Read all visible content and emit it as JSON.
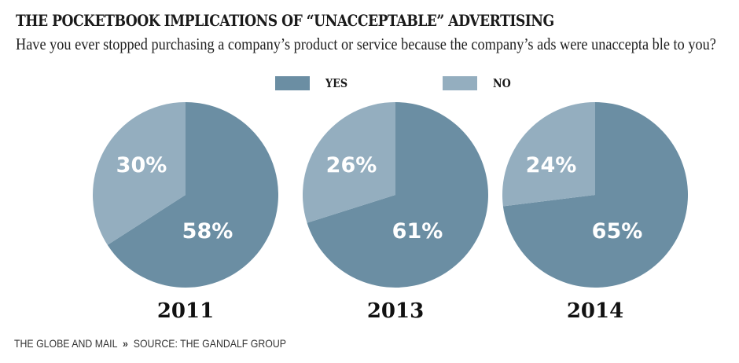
{
  "header": {
    "title": "THE POCKETBOOK IMPLICATIONS OF “UNACCEPTABLE” ADVERTISING",
    "subtitle": "Have you ever stopped purchasing a company’s product or service because the company’s ads were unaccepta ble to you?"
  },
  "legend": [
    {
      "label": "YES",
      "color": "#6b8ea3"
    },
    {
      "label": "NO",
      "color": "#94aebf"
    }
  ],
  "footer": {
    "publisher": "THE GLOBE AND MAIL",
    "separator": "»",
    "source": "SOURCE: THE GANDALF GROUP"
  },
  "chart_data": {
    "type": "pie",
    "title": "THE POCKETBOOK IMPLICATIONS OF “UNACCEPTABLE” ADVERTISING",
    "subtitle": "Have you ever stopped purchasing a company’s product or service because the company’s ads were unaccepta ble to you?",
    "legend": [
      "YES",
      "NO"
    ],
    "legend_position": "top-center",
    "colors": {
      "YES": "#6b8ea3",
      "NO": "#94aebf"
    },
    "pies": [
      {
        "label": "2011",
        "slices": [
          {
            "name": "YES",
            "value": 58,
            "label": "58%"
          },
          {
            "name": "NO",
            "value": 30,
            "label": "30%"
          }
        ]
      },
      {
        "label": "2013",
        "slices": [
          {
            "name": "YES",
            "value": 61,
            "label": "61%"
          },
          {
            "name": "NO",
            "value": 26,
            "label": "26%"
          }
        ]
      },
      {
        "label": "2014",
        "slices": [
          {
            "name": "YES",
            "value": 65,
            "label": "65%"
          },
          {
            "name": "NO",
            "value": 24,
            "label": "24%"
          }
        ]
      }
    ]
  }
}
